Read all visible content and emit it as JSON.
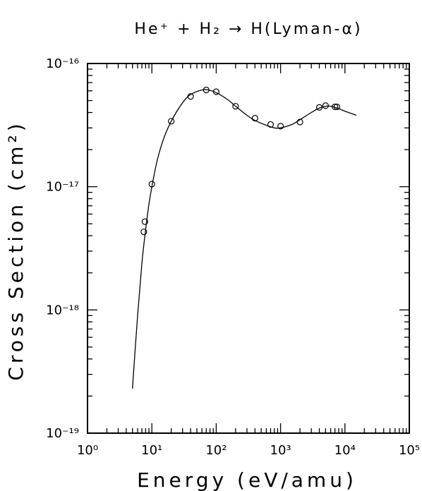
{
  "chart_data": {
    "type": "line",
    "title": "He⁺ + H₂ → H(Lyman-α)",
    "xlabel": "Energy (eV/amu)",
    "ylabel": "Cross Section (cm²)",
    "xscale": "log",
    "yscale": "log",
    "xlim": [
      1,
      100000
    ],
    "ylim": [
      1e-19,
      1e-16
    ],
    "x_ticks": [
      1,
      10,
      100,
      1000,
      10000,
      100000
    ],
    "x_tick_labels": [
      "10⁰",
      "10¹",
      "10²",
      "10³",
      "10⁴",
      "10⁵"
    ],
    "y_ticks": [
      1e-19,
      1e-18,
      1e-17,
      1e-16
    ],
    "y_tick_labels": [
      "10⁻¹⁹",
      "10⁻¹⁸",
      "10⁻¹⁷",
      "10⁻¹⁶"
    ],
    "grid": false,
    "series": [
      {
        "style": "line",
        "x": [
          5,
          6,
          7,
          8,
          9,
          10,
          12,
          15,
          20,
          30,
          40,
          60,
          75,
          100,
          150,
          200,
          300,
          400,
          600,
          800,
          1000,
          1500,
          2000,
          3000,
          4000,
          5000,
          6000,
          8000,
          10000,
          15000
        ],
        "y": [
          2.3e-19,
          9e-19,
          2.4e-18,
          4.5e-18,
          7.2e-18,
          1e-17,
          1.6e-17,
          2.4e-17,
          3.4e-17,
          4.8e-17,
          5.6e-17,
          6.1e-17,
          6.1e-17,
          5.8e-17,
          5.1e-17,
          4.5e-17,
          3.8e-17,
          3.45e-17,
          3.15e-17,
          3e-17,
          3e-17,
          3.2e-17,
          3.5e-17,
          4e-17,
          4.35e-17,
          4.5e-17,
          4.5e-17,
          4.3e-17,
          4.1e-17,
          3.8e-17
        ]
      },
      {
        "style": "markers",
        "marker": "open-circle",
        "x": [
          7.5,
          7.8,
          10,
          20,
          40,
          70,
          100,
          200,
          400,
          700,
          1000,
          2000,
          4000,
          5000,
          7000,
          7500
        ],
        "y": [
          4.3e-18,
          5.2e-18,
          1.05e-17,
          3.4e-17,
          5.4e-17,
          6.1e-17,
          5.9e-17,
          4.5e-17,
          3.6e-17,
          3.2e-17,
          3.1e-17,
          3.35e-17,
          4.4e-17,
          4.55e-17,
          4.45e-17,
          4.45e-17
        ]
      }
    ]
  }
}
